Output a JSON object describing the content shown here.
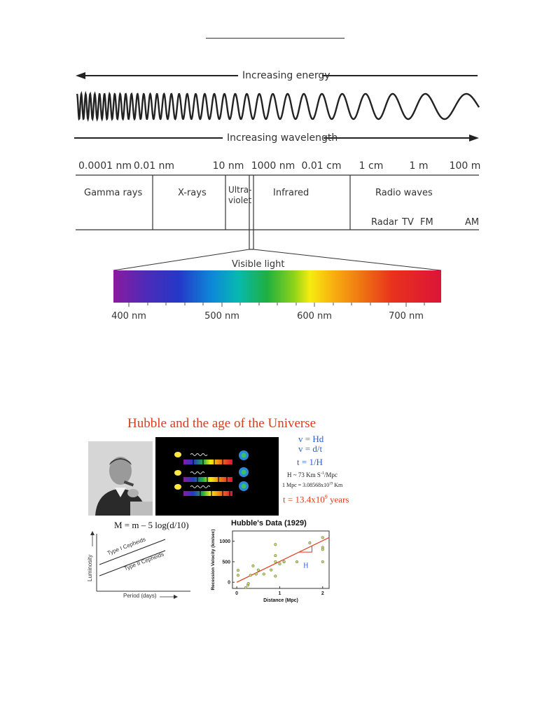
{
  "spectrum": {
    "energy_label": "Increasing energy",
    "wavelength_label": "Increasing wavelength",
    "scale_ticks": [
      "0.0001 nm",
      "0.01 nm",
      "10 nm",
      "1000 nm",
      "0.01 cm",
      "1 cm",
      "1 m",
      "100 m"
    ],
    "bands": {
      "gamma": "Gamma rays",
      "xray": "X-rays",
      "uv_line1": "Ultra-",
      "uv_line2": "violet",
      "infrared": "Infrared",
      "radio": "Radio waves"
    },
    "radio_sub": [
      "Radar",
      "TV",
      "FM",
      "AM"
    ],
    "visible_label": "Visible light",
    "visible_ticks": [
      "400 nm",
      "500 nm",
      "600 nm",
      "700 nm"
    ]
  },
  "hubble": {
    "title": "Hubble and the age of the Universe",
    "eq1": "v = Hd",
    "eq2": "v = d/t",
    "eq3": "t = 1/H",
    "h_value_a": "H ~ 73 Km S",
    "h_value_sup": "-1",
    "h_value_b": "/Mpc",
    "mpc_a": "1 Mpc = 3.08568x10",
    "mpc_sup": "19",
    "mpc_b": " Km",
    "age_a": "t = 13.4x10",
    "age_sup": "9",
    "age_b": " years",
    "distance_modulus": "M = m – 5 log(d/10)"
  },
  "cepheid_plot": {
    "ylabel": "Luminosity",
    "xlabel": "Period (days)",
    "line1": "Type I Cepheids",
    "line2": "Type II Cepheids"
  },
  "chart_data": {
    "type": "scatter",
    "title": "Hubble's Data (1929)",
    "xlabel": "Distance (Mpc)",
    "ylabel": "Recession Velocity (km/sec)",
    "xlim": [
      -0.1,
      2.15
    ],
    "ylim": [
      -150,
      1250
    ],
    "xticks": [
      "0",
      "1",
      "2"
    ],
    "yticks": [
      "0",
      "500",
      "1000"
    ],
    "annotation": "H",
    "points": [
      {
        "x": 0.03,
        "y": 170
      },
      {
        "x": 0.03,
        "y": 290
      },
      {
        "x": 0.21,
        "y": -130
      },
      {
        "x": 0.26,
        "y": -70
      },
      {
        "x": 0.27,
        "y": -30
      },
      {
        "x": 0.45,
        "y": 200
      },
      {
        "x": 0.5,
        "y": 300
      },
      {
        "x": 0.63,
        "y": 200
      },
      {
        "x": 0.8,
        "y": 300
      },
      {
        "x": 0.9,
        "y": 650
      },
      {
        "x": 0.9,
        "y": 150
      },
      {
        "x": 0.9,
        "y": 500
      },
      {
        "x": 0.9,
        "y": 920
      },
      {
        "x": 1.0,
        "y": 450
      },
      {
        "x": 1.1,
        "y": 500
      },
      {
        "x": 1.1,
        "y": 500
      },
      {
        "x": 1.4,
        "y": 500
      },
      {
        "x": 1.7,
        "y": 960
      },
      {
        "x": 2.0,
        "y": 500
      },
      {
        "x": 2.0,
        "y": 850
      },
      {
        "x": 2.0,
        "y": 800
      },
      {
        "x": 2.0,
        "y": 1090
      },
      {
        "x": 0.32,
        "y": 170
      },
      {
        "x": 0.38,
        "y": 400
      }
    ],
    "fit_line": [
      {
        "x": 0,
        "y": 0
      },
      {
        "x": 2.15,
        "y": 1090
      }
    ],
    "colors": {
      "points": "#c8e060",
      "fit": "#e03a1a",
      "annotation": "#2a5fd0"
    }
  }
}
